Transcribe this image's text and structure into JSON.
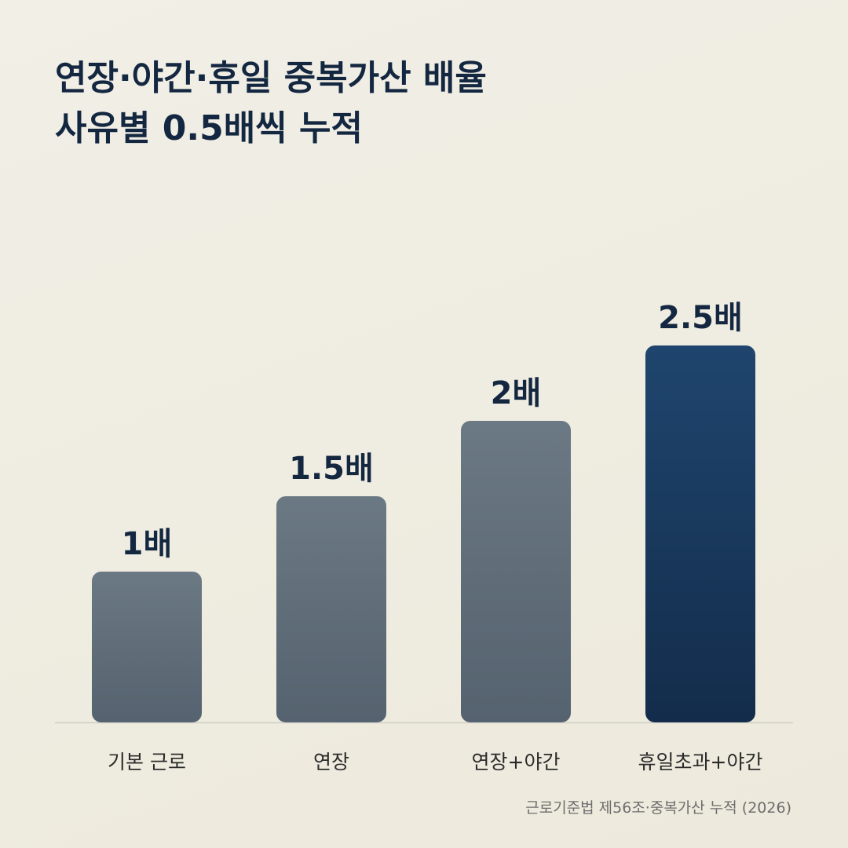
{
  "title": {
    "line1": "연장·야간·휴일 중복가산 배율",
    "line2": "사유별 0.5배씩 누적"
  },
  "source": "근로기준법 제56조·중복가산 누적 (2026)",
  "colors": {
    "bar_gray_top": "#6b7984",
    "bar_gray_bottom": "#55626f",
    "bar_highlight_top": "#1f456e",
    "bar_highlight_bottom": "#132c4b",
    "label_text": "#142741",
    "category_text": "#2b2b2b",
    "baseline": "#cfcfc6"
  },
  "chart_data": {
    "type": "bar",
    "categories": [
      "기본 근로",
      "연장",
      "연장+야간",
      "휴일초과+야간"
    ],
    "values": [
      1,
      1.5,
      2,
      2.5
    ],
    "data_labels": [
      "1배",
      "1.5배",
      "2배",
      "2.5배"
    ],
    "highlight_index": 3,
    "ylim": [
      0,
      2.5
    ],
    "grid": false,
    "title": "",
    "xlabel": "",
    "ylabel": ""
  }
}
